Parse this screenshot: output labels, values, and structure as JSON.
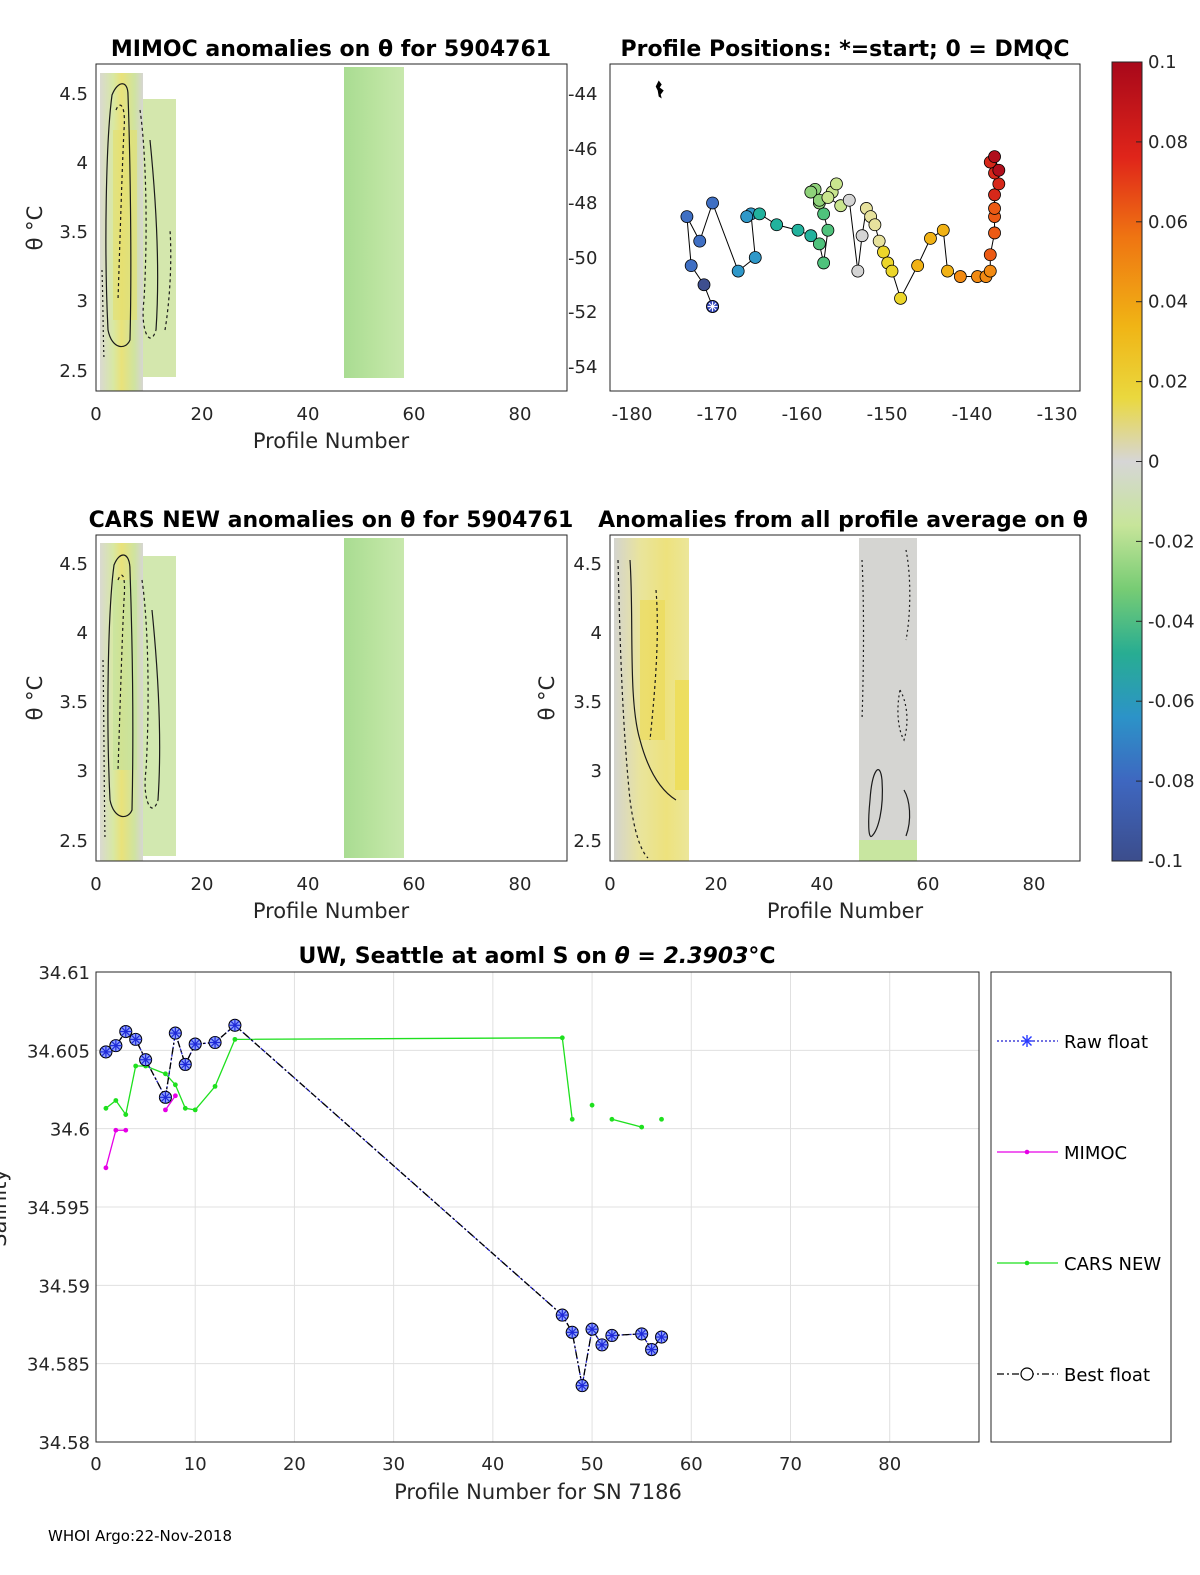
{
  "footer": "WHOI Argo:22-Nov-2018",
  "colorbar": {
    "ticks": [
      "0.1",
      "0.08",
      "0.06",
      "0.04",
      "0.02",
      "0",
      "-0.02",
      "-0.04",
      "-0.06",
      "-0.08",
      "-0.1"
    ],
    "colors": [
      "#3e4f8f",
      "#3f6fc3",
      "#2f98c9",
      "#22b29d",
      "#4fc27c",
      "#8fd27a",
      "#c9e58e",
      "#d4d4d4",
      "#e7e29d",
      "#ecd62a",
      "#f1b215",
      "#f28a12",
      "#ec5a14",
      "#d6281a",
      "#b00f1c"
    ]
  },
  "panels": {
    "mimoc": {
      "title": "MIMOC anomalies on θ  for 5904761",
      "xlabel": "Profile Number",
      "ylabel": "θ °C",
      "xticks": [
        "0",
        "20",
        "40",
        "60",
        "80"
      ],
      "yticks": [
        "4.5",
        "4",
        "3.5",
        "3",
        "2.5"
      ]
    },
    "positions": {
      "title": "Profile Positions: *=start; 0 = DMQC",
      "xticks": [
        "-180",
        "-170",
        "-160",
        "-150",
        "-140",
        "-130"
      ],
      "yticks": [
        "-44",
        "-46",
        "-48",
        "-50",
        "-52",
        "-54"
      ]
    },
    "cars": {
      "title": "CARS NEW anomalies on θ for 5904761",
      "xlabel": "Profile Number",
      "ylabel": "θ °C",
      "xticks": [
        "0",
        "20",
        "40",
        "60",
        "80"
      ],
      "yticks": [
        "4.5",
        "4",
        "3.5",
        "3",
        "2.5"
      ]
    },
    "average": {
      "title": "Anomalies from all profile average on θ",
      "xlabel": "Profile Number",
      "ylabel": "θ °C",
      "xticks": [
        "0",
        "20",
        "40",
        "60",
        "80"
      ],
      "yticks": [
        "4.5",
        "4",
        "3.5",
        "3",
        "2.5"
      ]
    }
  },
  "chart_data": [
    {
      "type": "scatter",
      "name": "profile-positions",
      "title": "Profile Positions: *=start; 0 = DMQC",
      "xlim": [
        -182,
        -127
      ],
      "ylim": [
        -55,
        -43
      ],
      "lon": [
        -170,
        -171,
        -172.5,
        -173,
        -171.5,
        -170,
        -167,
        -165,
        -165.5,
        -166,
        -164.5,
        -162.5,
        -160,
        -158.5,
        -157.5,
        -157,
        -156.5,
        -157,
        -157.5,
        -158,
        -158.5,
        -157.5,
        -156,
        -155.5,
        -156.5,
        -155,
        -154,
        -153,
        -152.5,
        -152,
        -151.5,
        -151,
        -150.5,
        -150,
        -149.5,
        -149,
        -148,
        -146,
        -144.5,
        -143,
        -142.5,
        -141,
        -139,
        -138,
        -137.5,
        -137.5,
        -137,
        -137,
        -137,
        -137,
        -136.5,
        -137,
        -137.5,
        -137,
        -136.5
      ],
      "lat": [
        -51.9,
        -51.1,
        -50.4,
        -48.6,
        -49.5,
        -48.1,
        -50.6,
        -50.1,
        -48.5,
        -48.6,
        -48.5,
        -48.9,
        -49.1,
        -49.3,
        -49.6,
        -50.3,
        -49.1,
        -48.5,
        -48.1,
        -47.6,
        -47.7,
        -48.0,
        -47.7,
        -47.4,
        -47.9,
        -48.2,
        -48.0,
        -50.6,
        -49.3,
        -48.3,
        -48.6,
        -48.9,
        -49.5,
        -49.9,
        -50.3,
        -50.6,
        -51.6,
        -50.4,
        -49.4,
        -49.1,
        -50.6,
        -50.8,
        -50.8,
        -50.8,
        -50.6,
        -50.0,
        -49.2,
        -48.6,
        -48.3,
        -47.8,
        -47.4,
        -47.0,
        -46.6,
        -46.4,
        -46.9
      ],
      "start_marker": "*",
      "coast_island": {
        "lon": -176.3,
        "lat": -43.9
      }
    },
    {
      "type": "line",
      "name": "salinity-on-theta",
      "title": "UW, Seattle at aoml S on θ = 2.3903°C",
      "title_prefix": "UW, Seattle at aoml S on ",
      "title_value": "θ = 2.3903",
      "title_unit": "°C",
      "xlabel": "Profile Number for SN 7186",
      "ylabel": "Salinity",
      "xlim": [
        0,
        89
      ],
      "ylim": [
        34.58,
        34.61
      ],
      "xticks": [
        "0",
        "10",
        "20",
        "30",
        "40",
        "50",
        "60",
        "70",
        "80"
      ],
      "yticks": [
        "34.61",
        "34.605",
        "34.6",
        "34.595",
        "34.59",
        "34.585",
        "34.58"
      ],
      "series": [
        {
          "name": "Raw float",
          "x": [
            1,
            2,
            3,
            4,
            5,
            7,
            8,
            9,
            10,
            12,
            14,
            47,
            48,
            49,
            50,
            51,
            52,
            55,
            56,
            57
          ],
          "y": [
            34.6049,
            34.6053,
            34.6062,
            34.6057,
            34.6044,
            34.602,
            34.6061,
            34.6041,
            34.6054,
            34.6055,
            34.6066,
            34.5881,
            34.587,
            34.5836,
            34.5872,
            34.5862,
            34.5868,
            34.5869,
            34.5859,
            34.5867
          ]
        },
        {
          "name": "MIMOC",
          "x": [
            1,
            2,
            3,
            null,
            7,
            8
          ],
          "y": [
            34.5975,
            34.5999,
            34.5999,
            null,
            34.6012,
            34.6021
          ]
        },
        {
          "name": "CARS NEW",
          "x": [
            1,
            2,
            3,
            4,
            5,
            7,
            8,
            9,
            10,
            12,
            14,
            47,
            48,
            null,
            50,
            null,
            52,
            55,
            null,
            57
          ],
          "y": [
            34.6013,
            34.6018,
            34.6009,
            34.604,
            34.604,
            34.6035,
            34.6028,
            34.6013,
            34.6012,
            34.6027,
            34.6057,
            34.6058,
            34.6006,
            null,
            34.6015,
            null,
            34.6006,
            34.6001,
            null,
            34.6006
          ]
        },
        {
          "name": "Best float",
          "x": [
            1,
            2,
            3,
            4,
            5,
            7,
            8,
            9,
            10,
            12,
            14,
            47,
            48,
            49,
            50,
            51,
            52,
            55,
            56,
            57
          ],
          "y": [
            34.6049,
            34.6053,
            34.6062,
            34.6057,
            34.6044,
            34.602,
            34.6061,
            34.6041,
            34.6054,
            34.6055,
            34.6066,
            34.5881,
            34.587,
            34.5836,
            34.5872,
            34.5862,
            34.5868,
            34.5869,
            34.5859,
            34.5867
          ]
        }
      ],
      "legend": [
        "Raw float",
        "MIMOC",
        "CARS NEW",
        "Best float"
      ],
      "legend_position": "outside-right"
    }
  ]
}
